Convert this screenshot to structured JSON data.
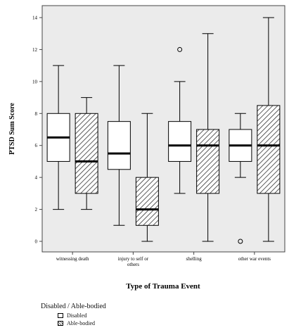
{
  "chart_data": {
    "type": "boxplot",
    "xlabel": "Type of Trauma Event",
    "ylabel": "PTSD Sum Score",
    "ylim": [
      0,
      14
    ],
    "yticks": [
      0,
      2,
      4,
      6,
      8,
      10,
      12,
      14
    ],
    "categories": [
      "witnessing death",
      "injury to self or others",
      "shelling",
      "other war events"
    ],
    "category_lines": [
      [
        "witnessing death"
      ],
      [
        "injury to self or",
        "others"
      ],
      [
        "shelling"
      ],
      [
        "other war events"
      ]
    ],
    "series": [
      {
        "name": "Disabled",
        "fill": "plain",
        "boxes": [
          {
            "min": 2,
            "q1": 5,
            "median": 6.5,
            "q3": 8,
            "max": 11,
            "outliers": []
          },
          {
            "min": 1,
            "q1": 4.5,
            "median": 5.5,
            "q3": 7.5,
            "max": 11,
            "outliers": []
          },
          {
            "min": 3,
            "q1": 5,
            "median": 6,
            "q3": 7.5,
            "max": 10,
            "outliers": [
              12
            ]
          },
          {
            "min": 4,
            "q1": 5,
            "median": 6,
            "q3": 7,
            "max": 8,
            "outliers": [
              0
            ]
          }
        ]
      },
      {
        "name": "Able-bodied",
        "fill": "hatched",
        "boxes": [
          {
            "min": 2,
            "q1": 3,
            "median": 5,
            "q3": 8,
            "max": 9,
            "outliers": []
          },
          {
            "min": 0,
            "q1": 1,
            "median": 2,
            "q3": 4,
            "max": 8,
            "outliers": []
          },
          {
            "min": 0,
            "q1": 3,
            "median": 6,
            "q3": 7,
            "max": 13,
            "outliers": []
          },
          {
            "min": 0,
            "q1": 3,
            "median": 6,
            "q3": 8.5,
            "max": 14,
            "outliers": []
          }
        ]
      }
    ],
    "grid": false,
    "background": "#ebebeb",
    "legend": {
      "title": "Disabled / Able-bodied",
      "placement": "bottom-left",
      "items": [
        "Disabled",
        "Able-bodied"
      ]
    }
  }
}
